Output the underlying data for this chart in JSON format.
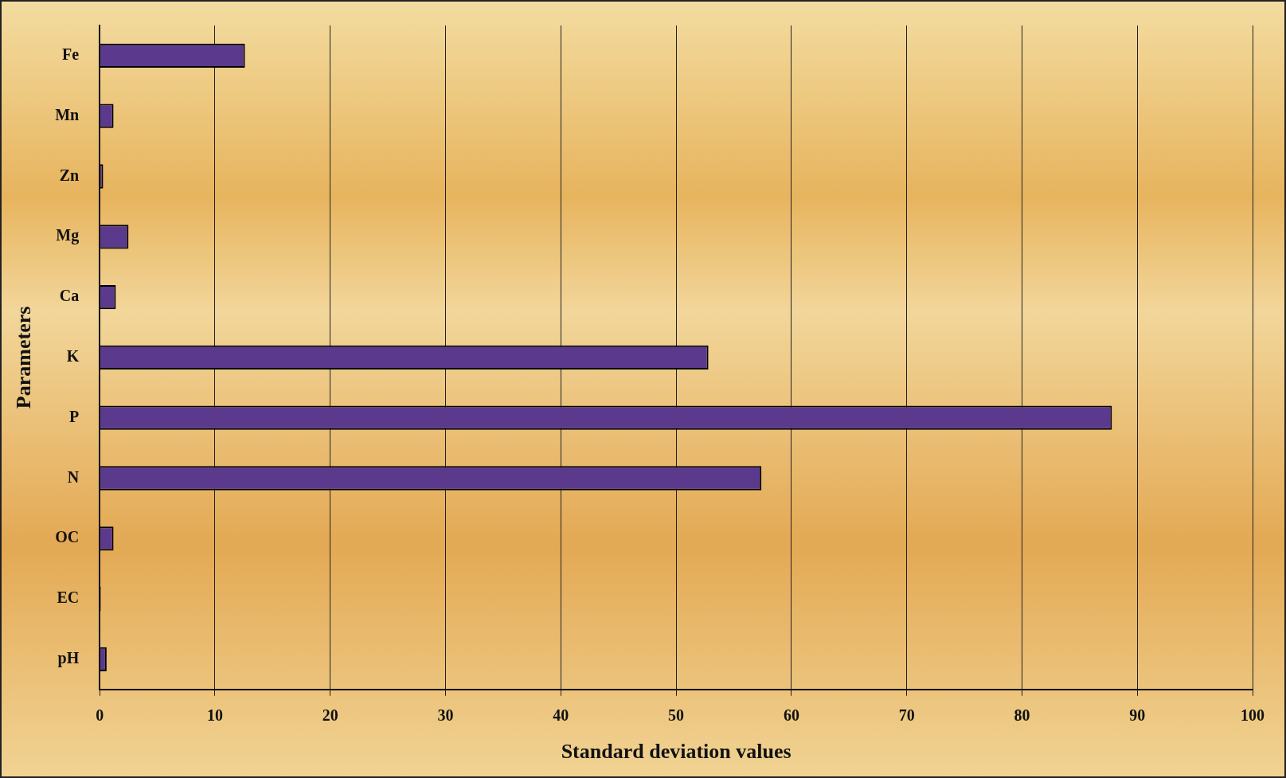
{
  "chart_data": {
    "type": "bar",
    "orientation": "horizontal",
    "xlabel": "Standard deviation values",
    "ylabel": "Parameters",
    "categories": [
      "Fe",
      "Mn",
      "Zn",
      "Mg",
      "Ca",
      "K",
      "P",
      "N",
      "OC",
      "EC",
      "pH"
    ],
    "values": [
      12.6,
      1.2,
      0.3,
      2.5,
      1.4,
      52.8,
      87.8,
      57.4,
      1.2,
      0.1,
      0.6
    ],
    "color": "#5b3a8e",
    "xlim": [
      0,
      100
    ],
    "xticks": [
      0,
      10,
      20,
      30,
      40,
      50,
      60,
      70,
      80,
      90,
      100
    ],
    "grid": "x",
    "legend": false
  }
}
